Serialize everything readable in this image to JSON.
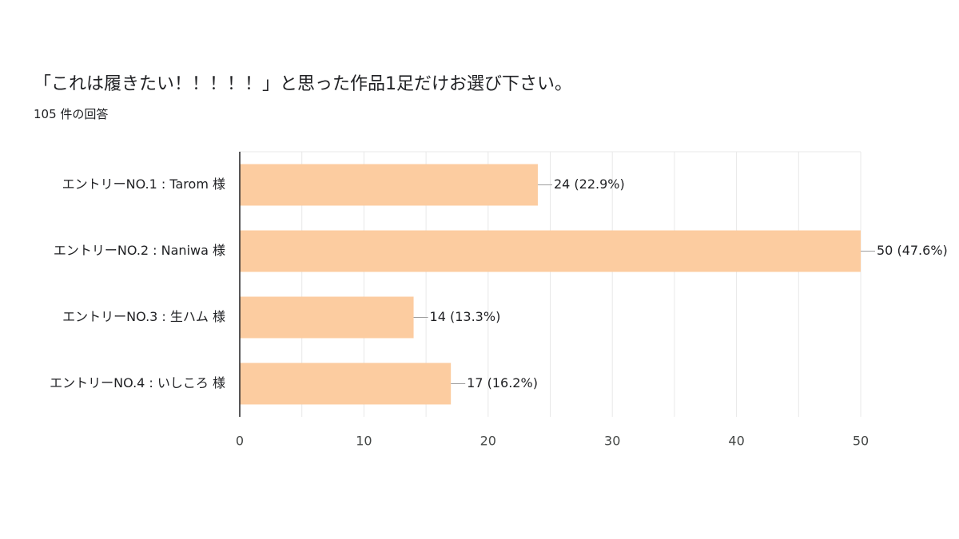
{
  "question": {
    "title": "「これは履きたい！！！！！」と思った作品1足だけお選び下さい。",
    "response_count": "105 件の回答"
  },
  "colors": {
    "bar": "#fccca0",
    "grid": "#e8e8e8",
    "axis": "#202124",
    "leader": "#9e9e9e"
  },
  "chart_data": {
    "type": "bar",
    "orientation": "horizontal",
    "categories": [
      "エントリーNO.1 : Tarom 様",
      "エントリーNO.2 : Naniwa 様",
      "エントリーNO.3 : 生ハム 様",
      "エントリーNO.4 : いしころ 様"
    ],
    "values": [
      24,
      50,
      14,
      17
    ],
    "data_labels": [
      "24 (22.9%)",
      "50 (47.6%)",
      "14 (13.3%)",
      "17 (16.2%)"
    ],
    "xlim": [
      0,
      50
    ],
    "xticks": [
      "0",
      "10",
      "20",
      "30",
      "40",
      "50"
    ],
    "minor_grid_step": 5,
    "grid": true,
    "legend": "none"
  }
}
